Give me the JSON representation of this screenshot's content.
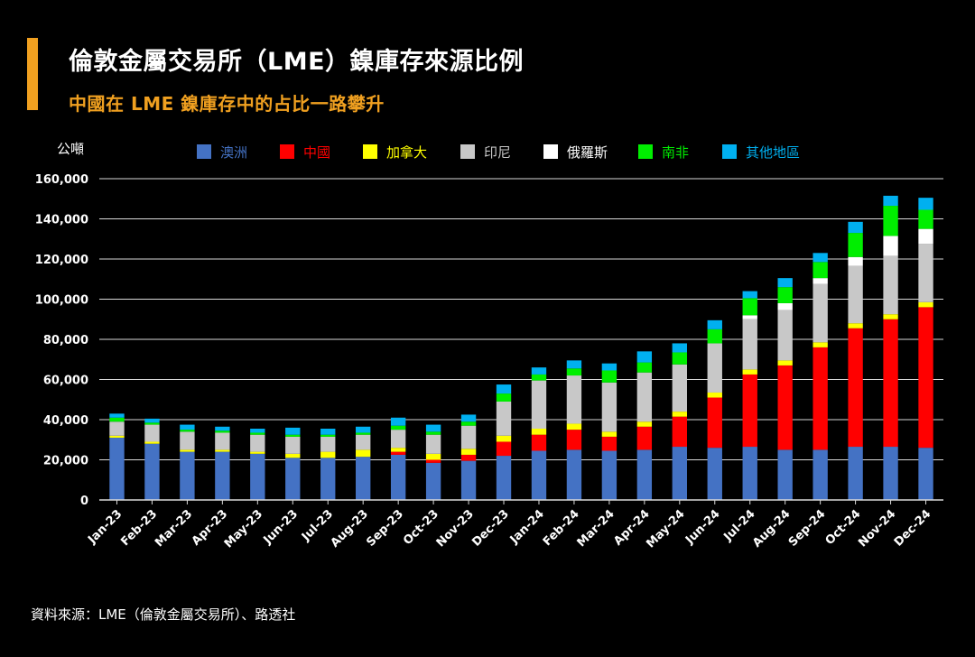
{
  "header": {
    "title": "倫敦金屬交易所（LME）鎳庫存來源比例",
    "subtitle": "中國在 LME 鎳庫存中的占比一路攀升"
  },
  "footer": {
    "source": "資料來源：LME（倫敦金屬交易所）、路透社"
  },
  "colors": {
    "accent": "#f0a020",
    "background": "#000000"
  },
  "chart_data": {
    "type": "bar",
    "stacked": true,
    "title": "倫敦金屬交易所（LME）鎳庫存來源比例",
    "subtitle": "中國在 LME 鎳庫存中的占比一路攀升",
    "ylabel": "公噸",
    "xlabel": "",
    "ylim": [
      0,
      160000
    ],
    "yticks": [
      0,
      20000,
      40000,
      60000,
      80000,
      100000,
      120000,
      140000,
      160000
    ],
    "ytick_labels": [
      "0",
      "20,000",
      "40,000",
      "60,000",
      "80,000",
      "100,000",
      "120,000",
      "140,000",
      "160,000"
    ],
    "grid": true,
    "legend_position": "top",
    "categories": [
      "Jan-23",
      "Feb-23",
      "Mar-23",
      "Apr-23",
      "May-23",
      "Jun-23",
      "Jul-23",
      "Aug-23",
      "Sep-23",
      "Oct-23",
      "Nov-23",
      "Dec-23",
      "Jan-24",
      "Feb-24",
      "Mar-24",
      "Apr-24",
      "May-24",
      "Jun-24",
      "Jul-24",
      "Aug-24",
      "Sep-24",
      "Oct-24",
      "Nov-24",
      "Dec-24"
    ],
    "series": [
      {
        "name": "澳洲",
        "color": "#4472c4",
        "values": [
          31000,
          28000,
          24000,
          24000,
          23000,
          21000,
          21000,
          21500,
          22500,
          18500,
          19500,
          22000,
          24500,
          25000,
          24500,
          25000,
          26500,
          26000,
          26500,
          25000,
          25000,
          26500,
          26500,
          26000
        ]
      },
      {
        "name": "中國",
        "color": "#ff0000",
        "values": [
          0,
          0,
          0,
          0,
          0,
          0,
          0,
          0,
          1500,
          1500,
          3000,
          7000,
          8000,
          10000,
          7000,
          11500,
          15000,
          25000,
          36000,
          42000,
          51000,
          59000,
          63500,
          70000
        ]
      },
      {
        "name": "加拿大",
        "color": "#ffff00",
        "values": [
          1000,
          1000,
          1000,
          1000,
          1000,
          2000,
          3000,
          3500,
          2000,
          3000,
          3000,
          3000,
          3000,
          3000,
          2500,
          2500,
          2500,
          2500,
          2500,
          2500,
          2500,
          2500,
          2500,
          2500
        ]
      },
      {
        "name": "印尼",
        "color": "#c8c8c8",
        "values": [
          7000,
          8500,
          9000,
          8500,
          8500,
          8500,
          7500,
          7500,
          9000,
          9500,
          11500,
          17000,
          24000,
          24000,
          24500,
          24500,
          23500,
          24500,
          25000,
          25000,
          29000,
          28500,
          29000,
          29000
        ]
      },
      {
        "name": "俄羅斯",
        "color": "#ffffff",
        "values": [
          0,
          0,
          0,
          0,
          0,
          0,
          0,
          0,
          0,
          0,
          0,
          0,
          0,
          0,
          0,
          0,
          0,
          0,
          2000,
          3500,
          3000,
          4500,
          10000,
          7500
        ]
      },
      {
        "name": "南非",
        "color": "#00ee00",
        "values": [
          2000,
          1000,
          1000,
          1000,
          1000,
          1000,
          1000,
          1000,
          2000,
          1500,
          2000,
          4000,
          3000,
          3500,
          6000,
          5000,
          6000,
          7000,
          8500,
          8000,
          8000,
          12000,
          15000,
          9500
        ]
      },
      {
        "name": "其他地區",
        "color": "#00b0f0",
        "values": [
          2000,
          2000,
          2500,
          2000,
          2000,
          3500,
          3000,
          3000,
          4000,
          3500,
          3500,
          4500,
          3500,
          4000,
          3500,
          5500,
          4500,
          4500,
          3500,
          4500,
          4500,
          5500,
          5000,
          6000
        ]
      }
    ]
  }
}
